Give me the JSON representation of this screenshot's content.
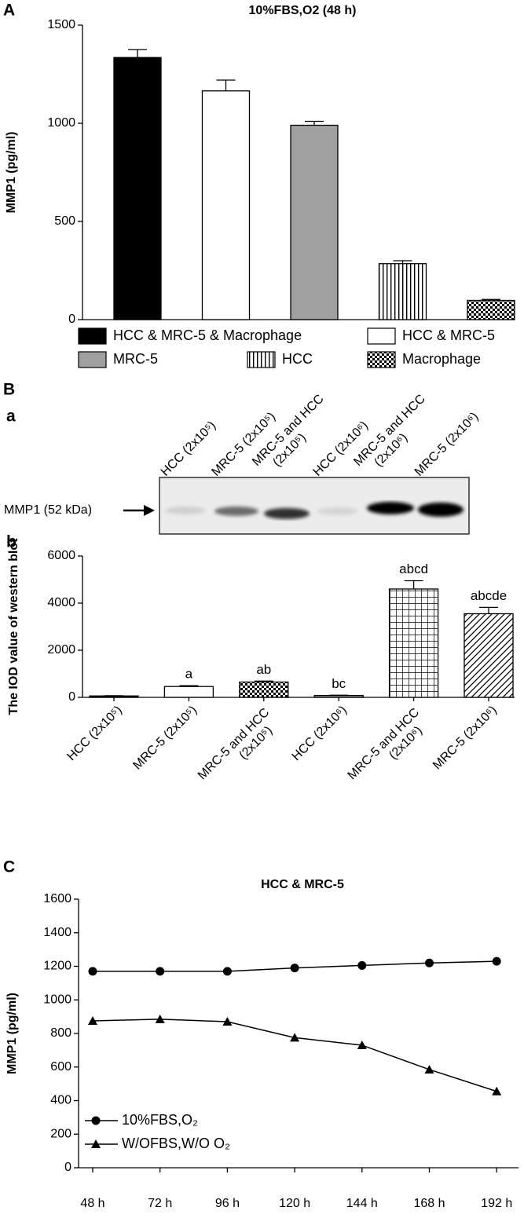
{
  "panel_labels": [
    "A",
    "B",
    "a",
    "b",
    "C"
  ],
  "blot": {
    "marker_label": "MMP1 (52 kDa)"
  },
  "chart_data": [
    {
      "type": "bar",
      "title": "10%FBS,O2 (48 h)",
      "ylabel": "MMP1 (pg/ml)",
      "ylim": [
        0,
        1500
      ],
      "yticks": [
        0,
        500,
        1000,
        1500
      ],
      "series": [
        {
          "name": "HCC & MRC-5 & Macrophage",
          "color": "#000000",
          "values": [
            1335
          ],
          "errors": [
            40
          ]
        },
        {
          "name": "HCC & MRC-5",
          "color": "#ffffff",
          "values": [
            1165
          ],
          "errors": [
            55
          ]
        },
        {
          "name": "MRC-5",
          "color": "#a0a0a0",
          "values": [
            990
          ],
          "errors": [
            20
          ]
        },
        {
          "name": "HCC",
          "color": "vertical-stripes",
          "values": [
            285
          ],
          "errors": [
            15
          ]
        },
        {
          "name": "Macrophage",
          "color": "checker",
          "values": [
            98
          ],
          "errors": [
            5
          ]
        }
      ]
    },
    {
      "type": "bar",
      "ylabel": "The IOD value of western blot",
      "ylim": [
        0,
        6000
      ],
      "yticks": [
        0,
        2000,
        4000,
        6000
      ],
      "categories": [
        "HCC (2x10⁵)",
        "MRC-5 (2x10⁵)",
        "MRC-5 and HCC (2x10⁵)",
        "HCC (2x10⁶)",
        "MRC-5 and HCC (2x10⁶)",
        "MRC-5 (2x10⁶)"
      ],
      "values": [
        60,
        460,
        650,
        80,
        4600,
        3550
      ],
      "errors": [
        10,
        35,
        40,
        10,
        350,
        270
      ],
      "colors": [
        "#000000",
        "#ffffff",
        "checker",
        "#a0a0a0",
        "grid",
        "diagonal"
      ],
      "annotations": [
        null,
        "a",
        "ab",
        "bc",
        "abcd",
        "abcde"
      ]
    },
    {
      "type": "line",
      "title": "HCC & MRC-5",
      "ylabel": "MMP1 (pg/ml)",
      "categories": [
        "48 h",
        "72 h",
        "96 h",
        "120 h",
        "144 h",
        "168 h",
        "192 h"
      ],
      "ylim": [
        0,
        1600
      ],
      "yticks": [
        0,
        200,
        400,
        600,
        800,
        1000,
        1200,
        1400,
        1600
      ],
      "series": [
        {
          "name": "10%FBS,O₂",
          "color": "#000000",
          "marker": "circle",
          "values": [
            1170,
            1170,
            1170,
            1190,
            1205,
            1220,
            1230
          ]
        },
        {
          "name": "W/OFBS,W/O O₂",
          "color": "#000000",
          "marker": "triangle",
          "values": [
            875,
            885,
            870,
            775,
            730,
            585,
            455
          ]
        }
      ]
    }
  ]
}
